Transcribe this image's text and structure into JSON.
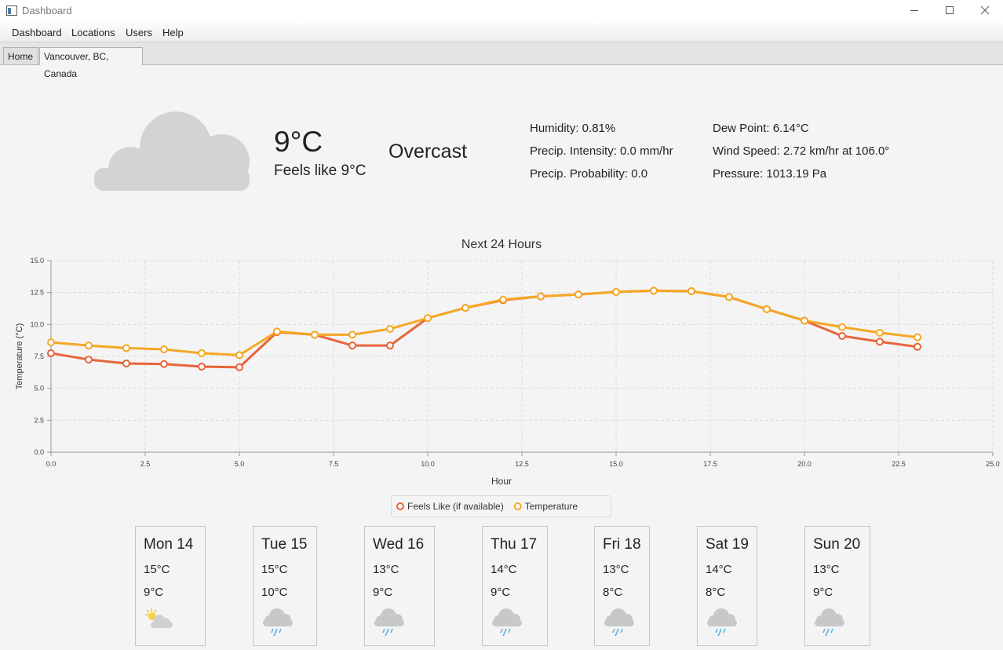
{
  "window": {
    "title": "Dashboard"
  },
  "menu": [
    "Dashboard",
    "Locations",
    "Users",
    "Help"
  ],
  "tabs": [
    "Home",
    "Vancouver, BC, Canada"
  ],
  "current": {
    "temperature": "9°C",
    "feels_like": "Feels like 9°C",
    "summary": "Overcast",
    "details": [
      "Humidity: 0.81%",
      "Precip. Intensity: 0.0 mm/hr",
      "Precip. Probability: 0.0",
      "Dew Point: 6.14°C",
      "Wind Speed: 2.72 km/hr at 106.0°",
      "Pressure: 1013.19 Pa"
    ]
  },
  "chart_data": {
    "type": "line",
    "title": "Next 24 Hours",
    "x_label": "Hour",
    "y_label": "Temperature (°C)",
    "x": [
      0,
      1,
      2,
      3,
      4,
      5,
      6,
      7,
      8,
      9,
      10,
      11,
      12,
      13,
      14,
      15,
      16,
      17,
      18,
      19,
      20,
      21,
      22,
      23
    ],
    "series": [
      {
        "name": "Feels Like (if available)",
        "color": "#e8643a",
        "values": [
          7.75,
          7.25,
          6.95,
          6.9,
          6.7,
          6.65,
          9.4,
          9.2,
          8.35,
          8.35,
          10.5,
          11.3,
          11.9,
          12.2,
          12.35,
          12.55,
          12.65,
          12.6,
          12.15,
          11.2,
          10.3,
          9.1,
          8.65,
          8.25
        ]
      },
      {
        "name": "Temperature",
        "color": "#f4a825",
        "values": [
          8.6,
          8.35,
          8.15,
          8.05,
          7.75,
          7.6,
          9.45,
          9.2,
          9.2,
          9.65,
          10.5,
          11.3,
          11.95,
          12.2,
          12.35,
          12.55,
          12.65,
          12.6,
          12.15,
          11.2,
          10.3,
          9.8,
          9.35,
          9.0
        ]
      }
    ],
    "xlim": [
      0,
      25
    ],
    "xticks": [
      {
        "value": 0,
        "label": "0.0"
      },
      {
        "value": 2.5,
        "label": "2.5"
      },
      {
        "value": 5,
        "label": "5.0"
      },
      {
        "value": 7.5,
        "label": "7.5"
      },
      {
        "value": 10,
        "label": "10.0"
      },
      {
        "value": 12.5,
        "label": "12.5"
      },
      {
        "value": 15,
        "label": "15.0"
      },
      {
        "value": 17.5,
        "label": "17.5"
      },
      {
        "value": 20,
        "label": "20.0"
      },
      {
        "value": 22.5,
        "label": "22.5"
      },
      {
        "value": 25,
        "label": "25.0"
      }
    ],
    "ylim": [
      0,
      15
    ],
    "yticks": [
      {
        "value": 0,
        "label": "0.0"
      },
      {
        "value": 2.5,
        "label": "2.5"
      },
      {
        "value": 5,
        "label": "5.0"
      },
      {
        "value": 7.5,
        "label": "7.5"
      },
      {
        "value": 10,
        "label": "10.0"
      },
      {
        "value": 12.5,
        "label": "12.5"
      },
      {
        "value": 15,
        "label": "15.0"
      }
    ],
    "grid": true,
    "legend": "bottom"
  },
  "forecast": [
    {
      "day": "Mon 14",
      "high": "15°C",
      "low": "9°C",
      "icon": "partly-cloudy"
    },
    {
      "day": "Tue 15",
      "high": "15°C",
      "low": "10°C",
      "icon": "rain"
    },
    {
      "day": "Wed 16",
      "high": "13°C",
      "low": "9°C",
      "icon": "rain"
    },
    {
      "day": "Thu 17",
      "high": "14°C",
      "low": "9°C",
      "icon": "rain"
    },
    {
      "day": "Fri 18",
      "high": "13°C",
      "low": "8°C",
      "icon": "rain"
    },
    {
      "day": "Sat 19",
      "high": "14°C",
      "low": "8°C",
      "icon": "rain"
    },
    {
      "day": "Sun 20",
      "high": "13°C",
      "low": "9°C",
      "icon": "rain"
    }
  ]
}
